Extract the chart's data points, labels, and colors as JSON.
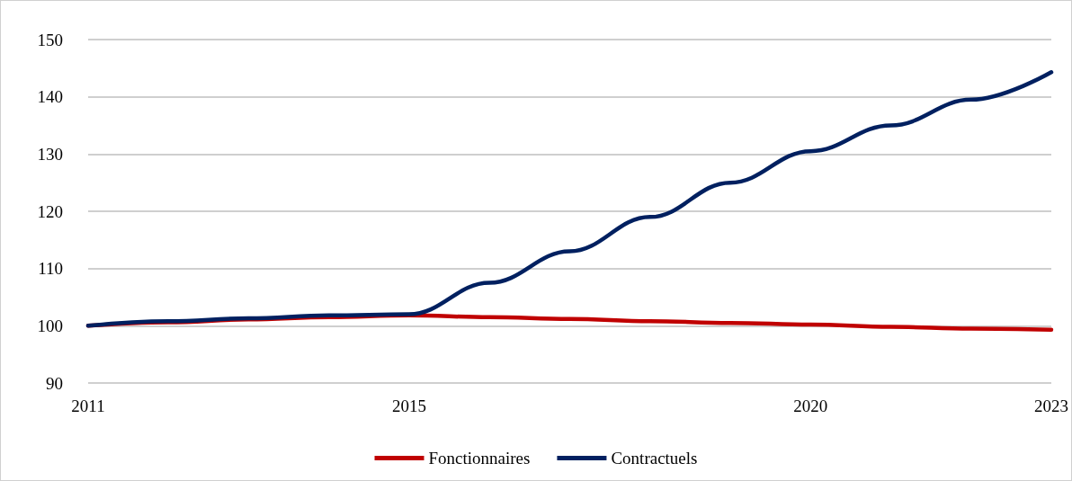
{
  "chart_data": {
    "type": "line",
    "x": [
      2011,
      2012,
      2013,
      2014,
      2015,
      2016,
      2017,
      2018,
      2019,
      2020,
      2021,
      2022,
      2023
    ],
    "series": [
      {
        "name": "Fonctionnaires",
        "color": "#c00000",
        "values": [
          100,
          100.6,
          101.1,
          101.5,
          101.8,
          101.5,
          101.2,
          100.8,
          100.5,
          100.2,
          99.8,
          99.5,
          99.3
        ]
      },
      {
        "name": "Contractuels",
        "color": "#002060",
        "values": [
          100,
          100.8,
          101.3,
          101.8,
          102,
          107.5,
          113,
          119,
          125,
          130.5,
          135,
          139.5,
          144.3
        ]
      }
    ],
    "xlim": [
      2011,
      2023
    ],
    "xticks": [
      2011,
      2015,
      2020,
      2023
    ],
    "ylim": [
      90,
      150
    ],
    "yticks": [
      90,
      100,
      110,
      120,
      130,
      140,
      150
    ],
    "grid": "y",
    "legend": "bottom",
    "marker": "none",
    "line_style": "solid"
  }
}
